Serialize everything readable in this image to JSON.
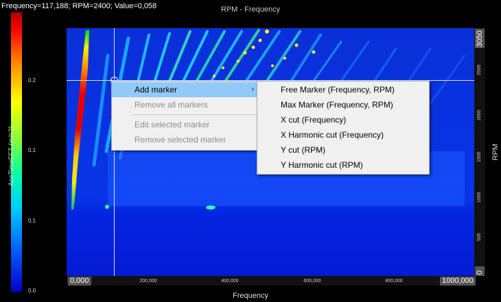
{
  "readout": "Frequency=117,188; RPM=2400; Value=0,058",
  "title": "RPM - Frequency",
  "colorbar": {
    "label": "AccTimeFFT (m/s2)",
    "ticks": [
      "0.2",
      "0.1",
      "0.1",
      "0.0"
    ]
  },
  "x_axis": {
    "label": "Frequency",
    "min_label": "0,000",
    "max_label": "1000,000",
    "ticks": [
      "200,000",
      "400,000",
      "600,000",
      "800,000"
    ]
  },
  "y_axis": {
    "label": "RPM",
    "min_label": "0",
    "max_label": "3050",
    "ticks": [
      "500",
      "1000",
      "1500",
      "2000",
      "2500"
    ]
  },
  "context_menu": {
    "items": [
      "Add marker",
      "Remove all markers",
      "Edit selected marker",
      "Remove selected marker"
    ],
    "arrow": "›"
  },
  "submenu": {
    "items": [
      "Free Marker (Frequency, RPM)",
      "Max Marker (Frequency, RPM)",
      "X cut (Frequency)",
      "X Harmonic cut (Frequency)",
      "Y cut (RPM)",
      "Y Harmonic cut (RPM)"
    ]
  }
}
